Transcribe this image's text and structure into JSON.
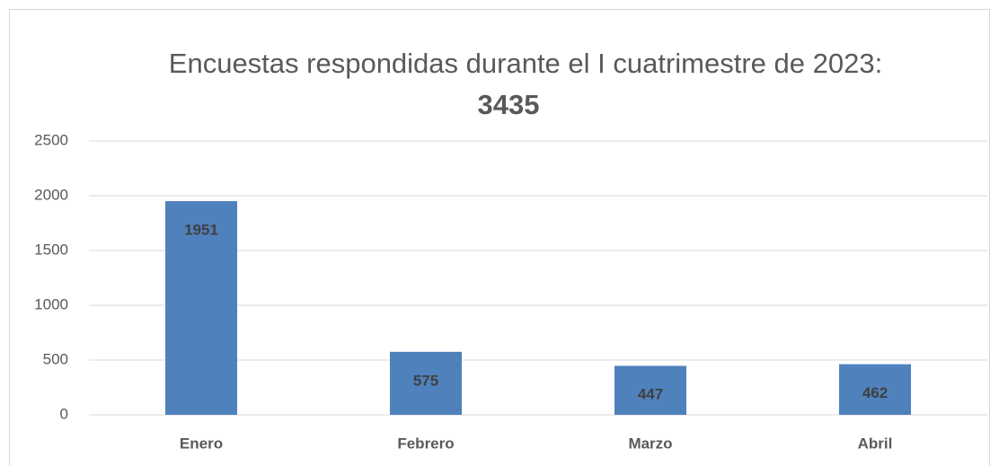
{
  "chart_data": {
    "type": "bar",
    "title": "Encuestas respondidas durante el I cuatrimestre de 2023:",
    "subtitle": "3435",
    "categories": [
      "Enero",
      "Febrero",
      "Marzo",
      "Abril"
    ],
    "values": [
      1951,
      575,
      447,
      462
    ],
    "color": "#4f81bd",
    "ylim": [
      0,
      2500
    ],
    "yticks": [
      0,
      500,
      1000,
      1500,
      2000,
      2500
    ],
    "grid": true
  }
}
